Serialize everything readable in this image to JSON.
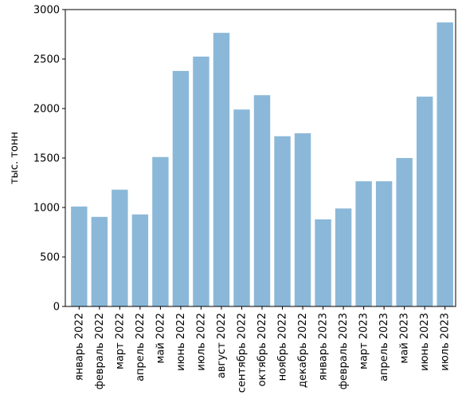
{
  "chart_data": {
    "type": "bar",
    "title": "",
    "xlabel": "",
    "ylabel": "тыс. тонн",
    "ylim": [
      0,
      3000
    ],
    "yticks": [
      0,
      500,
      1000,
      1500,
      2000,
      2500,
      3000
    ],
    "grid": false,
    "categories": [
      "январь 2022",
      "февраль 2022",
      "март 2022",
      "апрель 2022",
      "май 2022",
      "июнь 2022",
      "июль 2022",
      "август 2022",
      "сентябрь 2022",
      "октябрь 2022",
      "ноябрь 2022",
      "декабрь 2022",
      "январь 2023",
      "февраль 2023",
      "март 2023",
      "апрель 2023",
      "май 2023",
      "июнь 2023",
      "июль 2023"
    ],
    "values": [
      1010,
      905,
      1180,
      930,
      1510,
      2380,
      2525,
      2765,
      1990,
      2135,
      1720,
      1750,
      880,
      990,
      1265,
      1265,
      1500,
      2120,
      2870
    ],
    "bar_color": "#8bb8d8"
  }
}
